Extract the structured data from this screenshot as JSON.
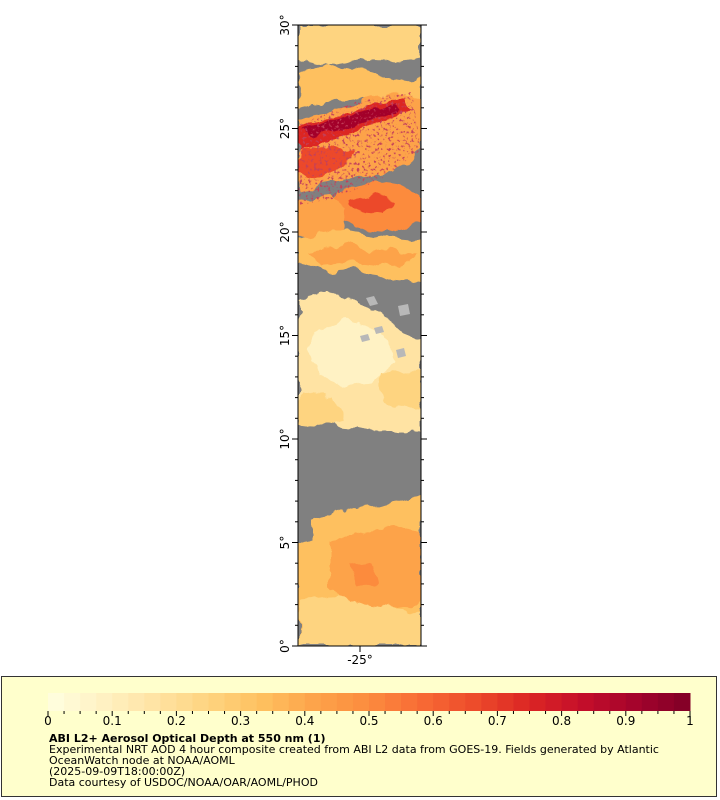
{
  "map": {
    "lat_ticks": [
      "0°",
      "5°",
      "10°",
      "15°",
      "20°",
      "25°",
      "30°"
    ],
    "lon_ticks": [
      "-25°"
    ],
    "colors": {
      "no_data": "#808080",
      "land_mask": "#b8b8b8",
      "frame": "#000000"
    }
  },
  "legend": {
    "ticks": [
      "0",
      "0.1",
      "0.2",
      "0.3",
      "0.4",
      "0.5",
      "0.6",
      "0.7",
      "0.8",
      "0.9",
      "1"
    ],
    "colormap": [
      "#ffffe0",
      "#fff2c4",
      "#ffe3a3",
      "#fed480",
      "#fec05f",
      "#fda34a",
      "#fc8b3e",
      "#f86a34",
      "#ec4a2b",
      "#dc2524",
      "#c40e2a",
      "#a3032c",
      "#800026"
    ],
    "background": "#ffffcc",
    "title": "ABI L2+ Aerosol Optical Depth at 550 nm (1)",
    "description": "Experimental NRT AOD 4 hour composite created from ABI L2 data from GOES-19. Fields generated by Atlantic OceanWatch node at NOAA/AOML",
    "timestamp": "(2025-09-09T18:00:00Z)",
    "credit": "Data courtesy of USDOC/NOAA/OAR/AOML/PHOD"
  }
}
